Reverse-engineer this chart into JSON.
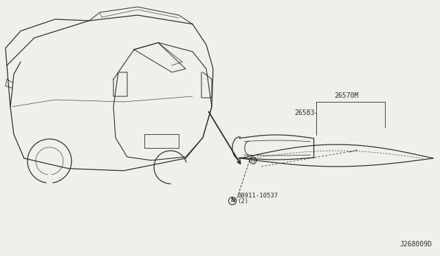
{
  "bg_color": "#f0f0eb",
  "line_color": "#2a2a2a",
  "label_26570M": "26570M",
  "label_26583": "26583",
  "label_bolt": "08911-10537",
  "label_bolt2": "(2)",
  "label_diagram": "J268009D"
}
